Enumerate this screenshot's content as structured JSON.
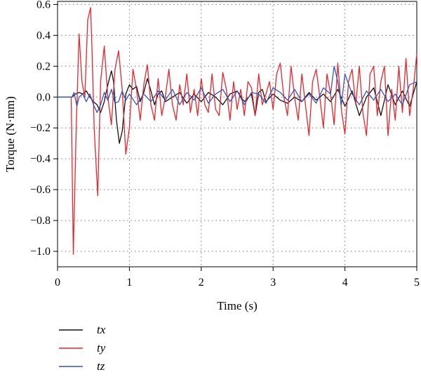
{
  "chart_data": {
    "type": "line",
    "xlabel": "Time (s)",
    "ylabel": "Torque (N·mm)",
    "xlim": [
      0,
      5
    ],
    "ylim": [
      -1.1,
      0.62
    ],
    "xticks": [
      0,
      1,
      2,
      3,
      4,
      5
    ],
    "yticks": [
      -1.0,
      -0.8,
      -0.6,
      -0.4,
      -0.2,
      0.0,
      0.2,
      0.4,
      0.6
    ],
    "ytick_labels": [
      "−1.0",
      "−0.8",
      "−0.6",
      "−0.4",
      "−0.2",
      "0.0",
      "0.2",
      "0.4",
      "0.6"
    ],
    "xtick_labels": [
      "0",
      "1",
      "2",
      "3",
      "4",
      "5"
    ],
    "grid": true,
    "grid_style": "dotted",
    "legend_position": "bottom-left, below plot",
    "series": [
      {
        "name": "tx",
        "color": "#111111",
        "x": [
          0,
          0.2,
          0.25,
          0.3,
          0.35,
          0.4,
          0.45,
          0.5,
          0.55,
          0.6,
          0.65,
          0.7,
          0.75,
          0.78,
          0.82,
          0.86,
          0.9,
          0.95,
          1.0,
          1.05,
          1.1,
          1.15,
          1.2,
          1.25,
          1.3,
          1.35,
          1.4,
          1.45,
          1.5,
          1.6,
          1.7,
          1.8,
          1.9,
          2.0,
          2.1,
          2.2,
          2.3,
          2.4,
          2.5,
          2.6,
          2.7,
          2.75,
          2.8,
          2.85,
          2.9,
          3.0,
          3.1,
          3.2,
          3.3,
          3.4,
          3.5,
          3.6,
          3.7,
          3.8,
          3.9,
          4.0,
          4.1,
          4.2,
          4.3,
          4.4,
          4.5,
          4.6,
          4.7,
          4.8,
          4.9,
          5.0
        ],
        "y": [
          0.0,
          0.0,
          0.02,
          0.03,
          0.02,
          0.04,
          0.0,
          -0.03,
          -0.05,
          -0.1,
          -0.03,
          0.08,
          0.17,
          0.1,
          -0.15,
          -0.3,
          -0.22,
          0.02,
          0.08,
          0.05,
          0.07,
          -0.03,
          0.03,
          0.12,
          0.04,
          -0.05,
          0.02,
          0.04,
          -0.03,
          0.0,
          0.03,
          -0.04,
          0.02,
          -0.03,
          0.03,
          0.0,
          -0.05,
          0.02,
          0.04,
          -0.03,
          0.02,
          -0.12,
          0.03,
          0.05,
          -0.03,
          0.02,
          -0.02,
          -0.04,
          0.0,
          -0.03,
          0.03,
          -0.02,
          0.02,
          -0.03,
          0.05,
          -0.06,
          0.04,
          -0.12,
          0.0,
          0.06,
          -0.12,
          0.08,
          -0.05,
          0.04,
          -0.06,
          0.1
        ]
      },
      {
        "name": "ty",
        "color": "#e8242c",
        "x": [
          0,
          0.19,
          0.22,
          0.26,
          0.3,
          0.34,
          0.38,
          0.42,
          0.46,
          0.48,
          0.51,
          0.56,
          0.6,
          0.65,
          0.7,
          0.75,
          0.8,
          0.85,
          0.9,
          0.95,
          1.0,
          1.05,
          1.1,
          1.15,
          1.2,
          1.25,
          1.3,
          1.35,
          1.4,
          1.45,
          1.5,
          1.55,
          1.6,
          1.65,
          1.7,
          1.75,
          1.8,
          1.85,
          1.9,
          1.95,
          2.0,
          2.05,
          2.1,
          2.15,
          2.2,
          2.25,
          2.3,
          2.35,
          2.4,
          2.45,
          2.5,
          2.55,
          2.6,
          2.65,
          2.7,
          2.75,
          2.8,
          2.85,
          2.9,
          2.95,
          3.0,
          3.05,
          3.1,
          3.15,
          3.2,
          3.25,
          3.3,
          3.35,
          3.4,
          3.45,
          3.5,
          3.55,
          3.6,
          3.65,
          3.7,
          3.75,
          3.8,
          3.85,
          3.9,
          3.95,
          4.0,
          4.05,
          4.1,
          4.15,
          4.2,
          4.25,
          4.3,
          4.35,
          4.4,
          4.45,
          4.5,
          4.55,
          4.6,
          4.65,
          4.7,
          4.75,
          4.8,
          4.85,
          4.9,
          4.95,
          5.0
        ],
        "y": [
          0.0,
          0.0,
          -1.02,
          -0.2,
          0.41,
          0.1,
          0.0,
          0.5,
          0.58,
          0.3,
          -0.2,
          -0.64,
          0.1,
          0.33,
          0.0,
          -0.18,
          0.18,
          0.3,
          0.05,
          -0.37,
          -0.2,
          0.18,
          0.05,
          -0.15,
          0.08,
          0.21,
          -0.05,
          -0.15,
          0.12,
          -0.12,
          0.0,
          0.18,
          -0.05,
          -0.15,
          0.08,
          -0.05,
          0.15,
          -0.1,
          0.05,
          -0.12,
          0.12,
          -0.05,
          -0.1,
          0.15,
          -0.08,
          -0.12,
          0.16,
          0.05,
          -0.15,
          0.1,
          -0.08,
          0.05,
          -0.12,
          0.1,
          0.06,
          -0.12,
          0.15,
          -0.05,
          0.02,
          0.1,
          -0.08,
          0.15,
          0.22,
          0.0,
          -0.12,
          0.2,
          0.0,
          -0.15,
          0.15,
          -0.05,
          -0.25,
          0.1,
          0.18,
          0.0,
          -0.2,
          0.15,
          0.02,
          -0.18,
          0.22,
          -0.08,
          -0.24,
          0.1,
          0.18,
          -0.05,
          0.2,
          -0.1,
          -0.25,
          0.15,
          0.2,
          -0.12,
          0.1,
          0.2,
          -0.25,
          0.05,
          -0.15,
          0.2,
          -0.1,
          0.25,
          -0.12,
          0.05,
          0.28
        ]
      },
      {
        "name": "tz",
        "color": "#3355bb",
        "x": [
          0,
          0.2,
          0.23,
          0.27,
          0.3,
          0.35,
          0.4,
          0.45,
          0.5,
          0.55,
          0.6,
          0.65,
          0.7,
          0.75,
          0.8,
          0.85,
          0.9,
          0.95,
          1.0,
          1.1,
          1.2,
          1.3,
          1.4,
          1.5,
          1.6,
          1.7,
          1.8,
          1.9,
          2.0,
          2.1,
          2.2,
          2.3,
          2.4,
          2.5,
          2.6,
          2.7,
          2.8,
          2.9,
          3.0,
          3.1,
          3.2,
          3.3,
          3.4,
          3.5,
          3.6,
          3.7,
          3.8,
          3.85,
          3.9,
          3.95,
          4.0,
          4.1,
          4.2,
          4.3,
          4.4,
          4.5,
          4.6,
          4.7,
          4.8,
          4.9,
          5.0
        ],
        "y": [
          0.0,
          0.0,
          0.03,
          -0.06,
          0.0,
          0.02,
          -0.03,
          0.02,
          -0.05,
          -0.1,
          -0.05,
          0.03,
          -0.02,
          0.05,
          -0.04,
          -0.03,
          0.04,
          -0.02,
          0.02,
          -0.05,
          0.02,
          -0.03,
          0.04,
          -0.02,
          0.05,
          -0.05,
          0.03,
          -0.02,
          0.06,
          -0.04,
          0.02,
          0.05,
          -0.03,
          0.04,
          -0.05,
          0.03,
          0.02,
          -0.04,
          0.06,
          0.03,
          -0.02,
          0.05,
          -0.03,
          0.02,
          -0.04,
          0.06,
          0.02,
          0.2,
          0.1,
          -0.05,
          0.15,
          0.02,
          -0.05,
          0.04,
          -0.02,
          0.05,
          -0.03,
          0.02,
          -0.05,
          0.08,
          0.1
        ]
      }
    ]
  }
}
